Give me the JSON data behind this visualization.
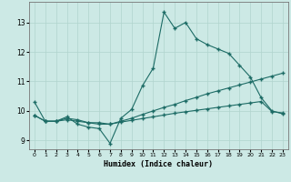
{
  "xlabel": "Humidex (Indice chaleur)",
  "xlim": [
    -0.5,
    23.5
  ],
  "ylim": [
    8.7,
    13.7
  ],
  "yticks": [
    9,
    10,
    11,
    12,
    13
  ],
  "xticks": [
    0,
    1,
    2,
    3,
    4,
    5,
    6,
    7,
    8,
    9,
    10,
    11,
    12,
    13,
    14,
    15,
    16,
    17,
    18,
    19,
    20,
    21,
    22,
    23
  ],
  "bg_color": "#cce9e5",
  "line_color": "#1c6b65",
  "grid_color": "#b0d4ce",
  "series1_y": [
    10.3,
    9.65,
    9.65,
    9.8,
    9.55,
    9.45,
    9.4,
    8.9,
    9.75,
    10.05,
    10.85,
    11.45,
    13.35,
    12.8,
    13.0,
    12.45,
    12.25,
    12.1,
    11.95,
    11.55,
    11.15,
    10.45,
    10.0,
    9.9
  ],
  "series2_y": [
    9.85,
    9.65,
    9.65,
    9.75,
    9.7,
    9.6,
    9.6,
    9.55,
    9.65,
    9.75,
    9.88,
    10.0,
    10.12,
    10.22,
    10.35,
    10.46,
    10.58,
    10.68,
    10.78,
    10.88,
    10.98,
    11.08,
    11.18,
    11.28
  ],
  "series3_y": [
    9.85,
    9.65,
    9.65,
    9.7,
    9.65,
    9.6,
    9.55,
    9.55,
    9.62,
    9.68,
    9.74,
    9.8,
    9.86,
    9.92,
    9.97,
    10.02,
    10.07,
    10.12,
    10.17,
    10.22,
    10.27,
    10.32,
    9.98,
    9.93
  ]
}
